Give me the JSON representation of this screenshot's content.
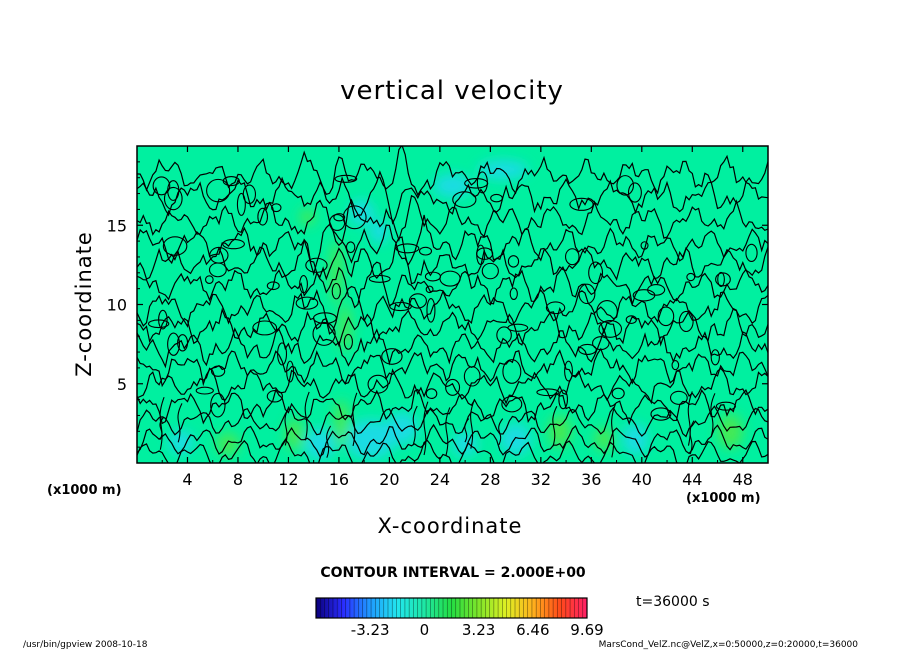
{
  "chart_data": {
    "type": "heatmap",
    "title": "vertical velocity",
    "xlabel": "X-coordinate",
    "ylabel": "Z-coordinate",
    "x_unit": "(x1000 m)",
    "z_unit": "(x1000 m)",
    "xlim": [
      0,
      50
    ],
    "ylim": [
      0,
      20
    ],
    "x_ticks": [
      4,
      8,
      12,
      16,
      20,
      24,
      28,
      32,
      36,
      40,
      44,
      48
    ],
    "y_ticks": [
      5,
      10,
      15
    ],
    "contour_interval": "CONTOUR INTERVAL = 2.000E+00",
    "time_label": "t=36000 s",
    "colorbar": {
      "range": [
        -6.46,
        9.69
      ],
      "tick_labels": [
        "-3.23",
        "0",
        "3.23",
        "6.46",
        "9.69"
      ],
      "tick_values": [
        -3.23,
        0,
        3.23,
        6.46,
        9.69
      ],
      "colors": [
        "#0b007c",
        "#2a2cff",
        "#1f9bff",
        "#22e6ee",
        "#1ee7a4",
        "#24dd43",
        "#7fe52a",
        "#ddf024",
        "#ffb21d",
        "#ff4a1a",
        "#ff1f66"
      ]
    },
    "background_color": "#00f0a0",
    "cool_regions": [
      {
        "x": 18.5,
        "z": 1.5,
        "w": 4,
        "h": 2.5
      },
      {
        "x": 14.5,
        "z": 1.2,
        "w": 2.5,
        "h": 2
      },
      {
        "x": 21,
        "z": 2.2,
        "w": 2.5,
        "h": 2
      },
      {
        "x": 30,
        "z": 1.5,
        "w": 2.5,
        "h": 2
      },
      {
        "x": 26,
        "z": 1.2,
        "w": 2,
        "h": 1.5
      },
      {
        "x": 39.5,
        "z": 1.5,
        "w": 2,
        "h": 2
      },
      {
        "x": 3.5,
        "z": 1.3,
        "w": 2,
        "h": 1.5
      },
      {
        "x": 17.8,
        "z": 15.8,
        "w": 2,
        "h": 1.6
      },
      {
        "x": 19.2,
        "z": 14.6,
        "w": 1.5,
        "h": 1.5
      },
      {
        "x": 25,
        "z": 17.5,
        "w": 3,
        "h": 1.5
      },
      {
        "x": 29,
        "z": 18.5,
        "w": 4,
        "h": 1.2
      }
    ],
    "warm_regions": [
      {
        "x": 7.2,
        "z": 1.2,
        "w": 1.8,
        "h": 1.4
      },
      {
        "x": 12.5,
        "z": 1.8,
        "w": 1.5,
        "h": 2
      },
      {
        "x": 16.2,
        "z": 2.5,
        "w": 1.2,
        "h": 3
      },
      {
        "x": 33.5,
        "z": 2,
        "w": 1.8,
        "h": 2
      },
      {
        "x": 37,
        "z": 1.5,
        "w": 1.5,
        "h": 1.5
      },
      {
        "x": 47,
        "z": 2,
        "w": 2,
        "h": 2.2
      },
      {
        "x": 15.8,
        "z": 12,
        "w": 1,
        "h": 4
      },
      {
        "x": 16.5,
        "z": 8.5,
        "w": 1,
        "h": 3
      },
      {
        "x": 13.5,
        "z": 15.5,
        "w": 1.2,
        "h": 1
      }
    ]
  },
  "footer": {
    "left": "/usr/bin/gpview   2008-10-18",
    "right": "MarsCond_VelZ.nc@VelZ,x=0:50000,z=0:20000,t=36000"
  }
}
